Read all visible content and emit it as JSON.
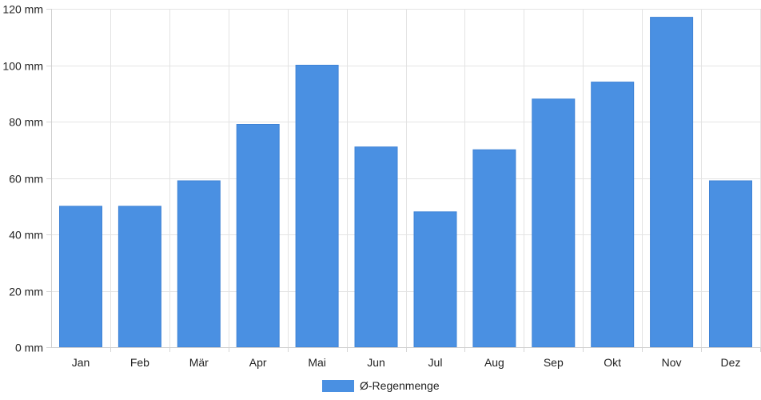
{
  "chart_data": {
    "type": "bar",
    "categories": [
      "Jan",
      "Feb",
      "Mär",
      "Apr",
      "Mai",
      "Jun",
      "Jul",
      "Aug",
      "Sep",
      "Okt",
      "Nov",
      "Dez"
    ],
    "series": [
      {
        "name": "Ø-Regenmenge",
        "values": [
          50,
          50,
          59,
          79,
          100,
          71,
          48,
          70,
          88,
          94,
          117,
          59
        ],
        "color": "#4a90e2"
      }
    ],
    "y_ticks": [
      "0 mm",
      "20 mm",
      "40 mm",
      "60 mm",
      "80 mm",
      "100 mm",
      "120 mm"
    ],
    "y_tick_values": [
      0,
      20,
      40,
      60,
      80,
      100,
      120
    ],
    "ylim": [
      0,
      120
    ],
    "grid": true,
    "legend_position": "bottom"
  }
}
